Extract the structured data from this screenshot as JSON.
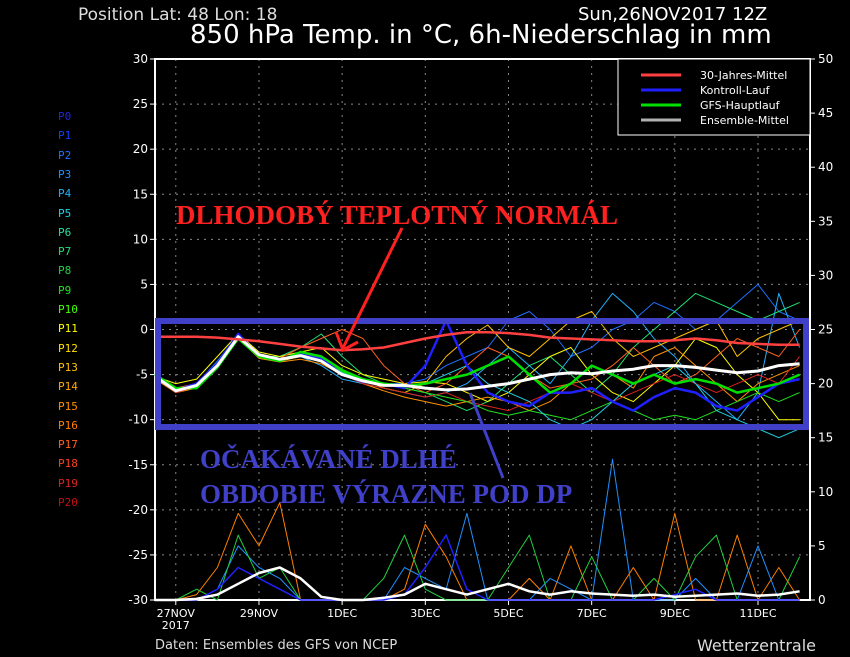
{
  "header": {
    "position": "Position  Lat: 48 Lon: 18",
    "run": "Sun,26NOV2017 12Z"
  },
  "footer": {
    "source": "Daten: Ensembles des GFS von NCEP",
    "brand": "Wetterzentrale"
  },
  "members": [
    {
      "label": "P0",
      "color": "#2424d8"
    },
    {
      "label": "P1",
      "color": "#1040ff"
    },
    {
      "label": "P2",
      "color": "#2070ff"
    },
    {
      "label": "P3",
      "color": "#2090ff"
    },
    {
      "label": "P4",
      "color": "#20b0ff"
    },
    {
      "label": "P5",
      "color": "#20d0e8"
    },
    {
      "label": "P6",
      "color": "#20e0a0"
    },
    {
      "label": "P7",
      "color": "#20e070"
    },
    {
      "label": "P8",
      "color": "#20d040"
    },
    {
      "label": "P9",
      "color": "#20e020"
    },
    {
      "label": "P10",
      "color": "#40ff00"
    },
    {
      "label": "P11",
      "color": "#ffff00"
    },
    {
      "label": "P12",
      "color": "#ffe000"
    },
    {
      "label": "P13",
      "color": "#ffc000"
    },
    {
      "label": "P14",
      "color": "#ffa800"
    },
    {
      "label": "P15",
      "color": "#ff9000"
    },
    {
      "label": "P16",
      "color": "#ff8000"
    },
    {
      "label": "P17",
      "color": "#ff6020"
    },
    {
      "label": "P18",
      "color": "#ff4020"
    },
    {
      "label": "P19",
      "color": "#e02020"
    },
    {
      "label": "P20",
      "color": "#c01010"
    }
  ],
  "annotations": {
    "normal_text": "DLHODOBÝ TEPLOTNÝ NORMÁL",
    "below_line1": "OČAKÁVANÉ DLHÉ",
    "below_line2": "OBDOBIE VÝRAZNE POD DP",
    "normal_color": "#ff2020",
    "below_color": "#4040c8"
  },
  "chart_data": {
    "type": "line",
    "title": "850 hPa Temp. in °C, 6h-Niederschlag in mm",
    "xlabel": "",
    "ylabel": "°C",
    "y2label": "mm",
    "x_unit": "days since 27NOV2017 00Z",
    "xlim": [
      -0.5,
      15.25
    ],
    "ylim": [
      -30,
      30
    ],
    "y2lim": [
      0,
      50
    ],
    "yticks": [
      -30,
      -25,
      -20,
      -15,
      -10,
      -5,
      0,
      5,
      10,
      15,
      20,
      25,
      30
    ],
    "y2ticks": [
      0,
      5,
      10,
      15,
      20,
      25,
      30,
      35,
      40,
      45,
      50
    ],
    "xticks": [
      {
        "x": 0,
        "label": "27NOV",
        "sub": "2017"
      },
      {
        "x": 2,
        "label": "29NOV"
      },
      {
        "x": 4,
        "label": "1DEC"
      },
      {
        "x": 6,
        "label": "3DEC"
      },
      {
        "x": 8,
        "label": "5DEC"
      },
      {
        "x": 10,
        "label": "7DEC"
      },
      {
        "x": 12,
        "label": "9DEC"
      },
      {
        "x": 14,
        "label": "11DEC"
      }
    ],
    "grid": true,
    "legend_position": "top-right",
    "legend": [
      {
        "name": "30-Jahres-Mittel",
        "color": "#ff4040"
      },
      {
        "name": "Kontroll-Lauf",
        "color": "#2020ff"
      },
      {
        "name": "GFS-Hauptlauf",
        "color": "#00e000"
      },
      {
        "name": "Ensemble-Mittel",
        "color": "#b0b0b0"
      }
    ],
    "x": [
      -0.5,
      0,
      0.5,
      1,
      1.5,
      2,
      2.5,
      3,
      3.5,
      4,
      4.5,
      5,
      5.5,
      6,
      6.5,
      7,
      7.5,
      8,
      8.5,
      9,
      9.5,
      10,
      10.5,
      11,
      11.5,
      12,
      12.5,
      13,
      13.5,
      14,
      14.5,
      15
    ],
    "temperature": {
      "climate_mean": [
        -0.8,
        -0.8,
        -0.8,
        -0.9,
        -1.1,
        -1.3,
        -1.6,
        -1.9,
        -2.1,
        -2.3,
        -2.2,
        -2.0,
        -1.5,
        -1.0,
        -0.6,
        -0.3,
        -0.3,
        -0.4,
        -0.6,
        -0.9,
        -1.0,
        -1.1,
        -1.2,
        -1.3,
        -1.3,
        -1.2,
        -1.0,
        -1.2,
        -1.5,
        -1.6,
        -1.7,
        -1.7
      ],
      "ensemble_mean": [
        -5.2,
        -6.8,
        -6.2,
        -4,
        -0.8,
        -2.8,
        -3.3,
        -2.9,
        -3.5,
        -5,
        -5.7,
        -6.2,
        -6.2,
        -6.5,
        -6.7,
        -6.6,
        -6.3,
        -6.0,
        -5.5,
        -5.0,
        -4.8,
        -4.9,
        -4.6,
        -4.4,
        -4.0,
        -4.0,
        -4.2,
        -4.5,
        -4.8,
        -4.6,
        -4.0,
        -3.8
      ],
      "control": [
        -5.2,
        -6.8,
        -6,
        -3.8,
        -0.5,
        -3,
        -3.3,
        -2.8,
        -3.2,
        -5,
        -5.8,
        -6,
        -6.5,
        -4,
        1,
        -4,
        -7,
        -8,
        -8.5,
        -7,
        -7,
        -6.5,
        -8,
        -9,
        -7.5,
        -6.5,
        -7,
        -8.5,
        -9,
        -7.5,
        -6,
        -5.5
      ],
      "main_run": [
        -5,
        -6.5,
        -6.5,
        -4.2,
        -1,
        -3,
        -3.5,
        -2.5,
        -3,
        -4.5,
        -5.5,
        -6,
        -6.3,
        -6,
        -5.5,
        -5,
        -4,
        -3,
        -5,
        -7,
        -6,
        -4,
        -5,
        -6,
        -5,
        -6,
        -5.5,
        -6,
        -7,
        -6.5,
        -6,
        -5
      ],
      "members": [
        {
          "name": "P2",
          "values": [
            -5,
            -6.5,
            -6,
            -3.5,
            -0.5,
            -3,
            -3,
            -2.5,
            -3,
            -4.5,
            -5.5,
            -6,
            -6,
            -5.5,
            -4,
            -3,
            -2,
            1,
            2,
            0,
            -3,
            -2,
            0,
            1,
            3,
            2,
            0,
            1,
            3,
            5,
            2,
            1
          ]
        },
        {
          "name": "P4",
          "values": [
            -5.3,
            -7,
            -6.3,
            -4,
            -1,
            -3,
            -3.5,
            -3,
            -4,
            -5.5,
            -6,
            -6.5,
            -7,
            -7.5,
            -7,
            -6,
            -4,
            -2,
            -4,
            -6,
            -3,
            1,
            4,
            2,
            -1,
            -3,
            -6,
            -8,
            -10,
            -7,
            4,
            -2
          ]
        },
        {
          "name": "P7",
          "values": [
            -5,
            -6.8,
            -6,
            -4,
            -1,
            -3,
            -3,
            -2,
            -0.5,
            -3,
            -5,
            -6,
            -6.5,
            -7,
            -8,
            -9,
            -8,
            -6,
            -4,
            -3,
            -5,
            -7,
            -5,
            -2,
            0,
            2,
            4,
            3,
            2,
            1,
            2,
            3
          ]
        },
        {
          "name": "P11",
          "values": [
            -5.2,
            -6,
            -5.5,
            -3,
            -0.5,
            -2.5,
            -3,
            -2.5,
            -2,
            -4,
            -5,
            -5.5,
            -6,
            -5.8,
            -6,
            -7,
            -8,
            -7,
            -5,
            -3,
            -2,
            -5,
            -7,
            -8,
            -6,
            -4,
            -1,
            -2,
            -5,
            -7,
            -10,
            -10
          ]
        },
        {
          "name": "P13",
          "values": [
            -5.4,
            -7,
            -6.2,
            -4.2,
            -1,
            -3,
            -3.5,
            -3,
            -3,
            -4.5,
            -5.5,
            -6.5,
            -7,
            -6,
            -3,
            -1,
            0.5,
            -2,
            -3,
            -1,
            1,
            2,
            -1,
            -3,
            -2,
            -1,
            0,
            1,
            -3,
            -1,
            0,
            1
          ]
        },
        {
          "name": "P15",
          "values": [
            -5.5,
            -7,
            -6.5,
            -4,
            -1,
            -3.2,
            -3.6,
            -3.3,
            -3.8,
            -5,
            -6,
            -6.8,
            -7.5,
            -8,
            -8.5,
            -8,
            -7.5,
            -8,
            -9,
            -8,
            -6,
            -4,
            -5,
            -6.5,
            -3,
            -2,
            -4,
            -6,
            -8,
            -6,
            -5,
            -4
          ]
        },
        {
          "name": "P17",
          "values": [
            -5,
            -6.5,
            -6,
            -3.8,
            -0.8,
            -3,
            -3.2,
            -2,
            -1,
            0,
            -1,
            -4,
            -6,
            -7,
            -6,
            -4,
            -2,
            -3,
            -5,
            -6.5,
            -6,
            -5.5,
            -4,
            -2,
            -4,
            -6,
            -5,
            -3,
            -1,
            -2,
            -3,
            0
          ]
        },
        {
          "name": "P19",
          "values": [
            -5.3,
            -7,
            -6.3,
            -4.1,
            -1,
            -3,
            -3.4,
            -3,
            -3.5,
            -5,
            -6,
            -6.5,
            -7,
            -7.5,
            -7,
            -8,
            -8.5,
            -9,
            -8,
            -7,
            -6,
            -7,
            -8,
            -7,
            -6,
            -5,
            -6,
            -7,
            -6,
            -5,
            -6,
            -3
          ]
        },
        {
          "name": "P9",
          "values": [
            -5,
            -6.7,
            -6,
            -3.7,
            -0.6,
            -2.8,
            -3.2,
            -2.8,
            -3.3,
            -4.7,
            -5.5,
            -6,
            -6.5,
            -7,
            -7.5,
            -8,
            -9,
            -9.5,
            -9,
            -9.5,
            -10,
            -9,
            -8,
            -9,
            -10,
            -9.5,
            -10,
            -9,
            -8,
            -7,
            -8,
            -7
          ]
        },
        {
          "name": "P5",
          "values": [
            -5.1,
            -6.8,
            -6.2,
            -3.9,
            -0.7,
            -3,
            -3.3,
            -3,
            -3.4,
            -4.8,
            -5.6,
            -6.2,
            -6.3,
            -6,
            -5,
            -4,
            -6,
            -7,
            -8,
            -10,
            -11,
            -10,
            -8,
            -6,
            -5,
            -4,
            -6,
            -9,
            -10,
            -11,
            -12,
            -11
          ]
        }
      ]
    },
    "precipitation_mm": {
      "ensemble_mean": [
        0,
        0,
        0.1,
        0.5,
        1.5,
        2.5,
        3,
        2,
        0.3,
        0,
        0,
        0.2,
        0.5,
        1.5,
        1,
        0.5,
        1,
        1.5,
        0.8,
        0.5,
        0.8,
        0.6,
        0.5,
        0.4,
        0.5,
        0.3,
        0.4,
        0.5,
        0.6,
        0.4,
        0.5,
        0.8
      ],
      "control": [
        0,
        0,
        0,
        1,
        3,
        2,
        1,
        0,
        0,
        0,
        0,
        0,
        0.5,
        3,
        6,
        1,
        0,
        0,
        0,
        0,
        0,
        0,
        0,
        0,
        0,
        0.5,
        1,
        0,
        0,
        0,
        0,
        0
      ],
      "members": [
        {
          "name": "P16",
          "values": [
            0,
            0,
            0.5,
            3,
            8,
            5,
            9,
            0,
            0,
            0,
            0,
            0,
            1,
            7,
            4,
            0,
            0,
            0,
            2,
            0,
            5,
            0,
            0,
            3,
            0,
            8,
            0,
            0,
            6,
            0,
            3,
            0
          ]
        },
        {
          "name": "P3",
          "values": [
            0,
            0,
            0,
            1,
            5,
            3,
            2,
            0,
            0,
            0,
            0,
            0,
            3,
            2,
            1,
            8,
            0,
            0,
            0,
            2,
            1,
            0,
            13,
            0,
            0,
            0,
            2,
            0,
            0,
            5,
            0,
            0
          ]
        },
        {
          "name": "P8",
          "values": [
            0,
            0,
            1,
            0,
            6,
            2,
            3,
            0,
            0,
            0,
            0,
            2,
            6,
            1,
            0,
            0,
            0,
            3,
            6,
            0,
            0,
            4,
            0,
            0,
            2,
            0,
            4,
            6,
            0,
            0,
            0,
            4
          ]
        }
      ]
    }
  }
}
